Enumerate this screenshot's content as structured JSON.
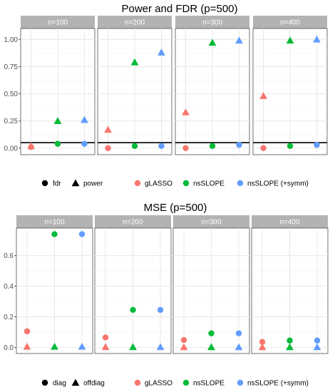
{
  "chart_data": [
    {
      "type": "scatter",
      "title": "Power and FDR (p=500)",
      "xlabel": "",
      "ylabel": "",
      "ylim": [
        -0.06,
        1.1
      ],
      "yticks": [
        "0.00",
        "0.25",
        "0.50",
        "0.75",
        "1.00"
      ],
      "ytick_values": [
        0,
        0.25,
        0.5,
        0.75,
        1.0
      ],
      "reference_line": 0.05,
      "grid": true,
      "panels": [
        {
          "label": "n=100",
          "points": [
            {
              "method": "gLASSO",
              "metric": "fdr",
              "value": 0.01
            },
            {
              "method": "gLASSO",
              "metric": "power",
              "value": 0.02
            },
            {
              "method": "nsSLOPE",
              "metric": "fdr",
              "value": 0.04
            },
            {
              "method": "nsSLOPE",
              "metric": "power",
              "value": 0.25
            },
            {
              "method": "nsSLOPE (+symm)",
              "metric": "fdr",
              "value": 0.04
            },
            {
              "method": "nsSLOPE (+symm)",
              "metric": "power",
              "value": 0.26
            }
          ]
        },
        {
          "label": "n=200",
          "points": [
            {
              "method": "gLASSO",
              "metric": "fdr",
              "value": 0.0
            },
            {
              "method": "gLASSO",
              "metric": "power",
              "value": 0.17
            },
            {
              "method": "nsSLOPE",
              "metric": "fdr",
              "value": 0.02
            },
            {
              "method": "nsSLOPE",
              "metric": "power",
              "value": 0.79
            },
            {
              "method": "nsSLOPE (+symm)",
              "metric": "fdr",
              "value": 0.02
            },
            {
              "method": "nsSLOPE (+symm)",
              "metric": "power",
              "value": 0.88
            }
          ]
        },
        {
          "label": "n=300",
          "points": [
            {
              "method": "gLASSO",
              "metric": "fdr",
              "value": 0.0
            },
            {
              "method": "gLASSO",
              "metric": "power",
              "value": 0.33
            },
            {
              "method": "nsSLOPE",
              "metric": "fdr",
              "value": 0.02
            },
            {
              "method": "nsSLOPE",
              "metric": "power",
              "value": 0.97
            },
            {
              "method": "nsSLOPE (+symm)",
              "metric": "fdr",
              "value": 0.03
            },
            {
              "method": "nsSLOPE (+symm)",
              "metric": "power",
              "value": 0.99
            }
          ]
        },
        {
          "label": "n=400",
          "points": [
            {
              "method": "gLASSO",
              "metric": "fdr",
              "value": 0.0
            },
            {
              "method": "gLASSO",
              "metric": "power",
              "value": 0.48
            },
            {
              "method": "nsSLOPE",
              "metric": "fdr",
              "value": 0.02
            },
            {
              "method": "nsSLOPE",
              "metric": "power",
              "value": 0.99
            },
            {
              "method": "nsSLOPE (+symm)",
              "metric": "fdr",
              "value": 0.03
            },
            {
              "method": "nsSLOPE (+symm)",
              "metric": "power",
              "value": 1.0
            }
          ]
        }
      ],
      "legend": {
        "placement": "bottom",
        "shape_items": [
          {
            "label": "fdr",
            "shape": "circle"
          },
          {
            "label": "power",
            "shape": "triangle"
          }
        ],
        "color_items": [
          {
            "label": "gLASSO",
            "color": "#F8766D"
          },
          {
            "label": "nsSLOPE",
            "color": "#00BA38"
          },
          {
            "label": "nsSLOPE (+symm)",
            "color": "#619CFF"
          }
        ]
      }
    },
    {
      "type": "scatter",
      "title": "MSE (p=500)",
      "xlabel": "",
      "ylabel": "",
      "ylim": [
        -0.04,
        0.78
      ],
      "yticks": [
        "0.0",
        "0.2",
        "0.4",
        "0.6"
      ],
      "ytick_values": [
        0,
        0.2,
        0.4,
        0.6
      ],
      "grid": true,
      "panels": [
        {
          "label": "n=100",
          "points": [
            {
              "method": "gLASSO",
              "metric": "diag",
              "value": 0.105
            },
            {
              "method": "gLASSO",
              "metric": "offdiag",
              "value": 0.005
            },
            {
              "method": "nsSLOPE",
              "metric": "diag",
              "value": 0.74
            },
            {
              "method": "nsSLOPE",
              "metric": "offdiag",
              "value": 0.005
            },
            {
              "method": "nsSLOPE (+symm)",
              "metric": "diag",
              "value": 0.74
            },
            {
              "method": "nsSLOPE (+symm)",
              "metric": "offdiag",
              "value": 0.005
            }
          ]
        },
        {
          "label": "n=200",
          "points": [
            {
              "method": "gLASSO",
              "metric": "diag",
              "value": 0.065
            },
            {
              "method": "gLASSO",
              "metric": "offdiag",
              "value": 0.003
            },
            {
              "method": "nsSLOPE",
              "metric": "diag",
              "value": 0.245
            },
            {
              "method": "nsSLOPE",
              "metric": "offdiag",
              "value": 0.003
            },
            {
              "method": "nsSLOPE (+symm)",
              "metric": "diag",
              "value": 0.245
            },
            {
              "method": "nsSLOPE (+symm)",
              "metric": "offdiag",
              "value": 0.003
            }
          ]
        },
        {
          "label": "n=300",
          "points": [
            {
              "method": "gLASSO",
              "metric": "diag",
              "value": 0.048
            },
            {
              "method": "gLASSO",
              "metric": "offdiag",
              "value": 0.002
            },
            {
              "method": "nsSLOPE",
              "metric": "diag",
              "value": 0.092
            },
            {
              "method": "nsSLOPE",
              "metric": "offdiag",
              "value": 0.002
            },
            {
              "method": "nsSLOPE (+symm)",
              "metric": "diag",
              "value": 0.092
            },
            {
              "method": "nsSLOPE (+symm)",
              "metric": "offdiag",
              "value": 0.002
            }
          ]
        },
        {
          "label": "n=400",
          "points": [
            {
              "method": "gLASSO",
              "metric": "diag",
              "value": 0.036
            },
            {
              "method": "gLASSO",
              "metric": "offdiag",
              "value": 0.002
            },
            {
              "method": "nsSLOPE",
              "metric": "diag",
              "value": 0.045
            },
            {
              "method": "nsSLOPE",
              "metric": "offdiag",
              "value": 0.002
            },
            {
              "method": "nsSLOPE (+symm)",
              "metric": "diag",
              "value": 0.045
            },
            {
              "method": "nsSLOPE (+symm)",
              "metric": "offdiag",
              "value": 0.002
            }
          ]
        }
      ],
      "legend": {
        "placement": "bottom",
        "shape_items": [
          {
            "label": "diag",
            "shape": "circle"
          },
          {
            "label": "offdiag",
            "shape": "triangle"
          }
        ],
        "color_items": [
          {
            "label": "gLASSO",
            "color": "#F8766D"
          },
          {
            "label": "nsSLOPE",
            "color": "#00BA38"
          },
          {
            "label": "nsSLOPE (+symm)",
            "color": "#619CFF"
          }
        ]
      }
    }
  ]
}
